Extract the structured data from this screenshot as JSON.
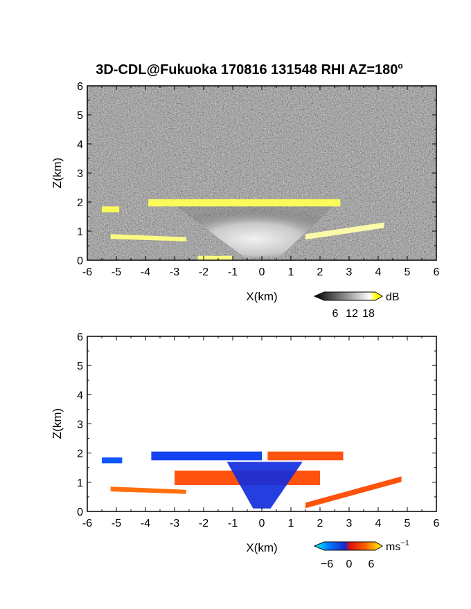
{
  "title": "3D-CDL@Fukuoka 170816 131548 RHI AZ=180",
  "title_degree": "o",
  "chart_data": [
    {
      "type": "heatmap",
      "panel": "signal-intensity",
      "xlabel": "X(km)",
      "ylabel": "Z(km)",
      "xlim": [
        -6,
        6
      ],
      "ylim": [
        0,
        6
      ],
      "xticks": [
        "-6",
        "-5",
        "-4",
        "-3",
        "-2",
        "-1",
        "0",
        "1",
        "2",
        "3",
        "4",
        "5",
        "6"
      ],
      "yticks": [
        "0",
        "1",
        "2",
        "3",
        "4",
        "5",
        "6"
      ],
      "colorbar": {
        "unit": "dB",
        "ticks": [
          "6",
          "12",
          "18"
        ],
        "range": [
          0,
          24
        ],
        "colors": [
          "#000000",
          "#ffffff",
          "#ffff00"
        ]
      },
      "features": [
        {
          "label": "yellow rim top",
          "x": [
            -3.9,
            2.7
          ],
          "z": [
            1.85,
            2.1
          ],
          "value": 20
        },
        {
          "label": "bright cone body",
          "x": [
            -3.0,
            2.5
          ],
          "z": [
            0.2,
            1.9
          ],
          "value": 12
        },
        {
          "label": "left layer upper",
          "x": [
            -5.5,
            -4.9
          ],
          "z": [
            1.65,
            1.85
          ],
          "value": 20
        },
        {
          "label": "left layer lower",
          "x": [
            -5.2,
            -2.6
          ],
          "z": [
            0.65,
            0.9
          ],
          "value": 18
        },
        {
          "label": "right layer",
          "x": [
            1.5,
            4.2
          ],
          "z": [
            0.9,
            1.3
          ],
          "value": 16
        },
        {
          "label": "ground clutter",
          "x": [
            -2.2,
            -1.0
          ],
          "z": [
            0,
            0.15
          ],
          "value": 18
        }
      ]
    },
    {
      "type": "heatmap",
      "panel": "doppler-velocity",
      "xlabel": "X(km)",
      "ylabel": "Z(km)",
      "xlim": [
        -6,
        6
      ],
      "ylim": [
        0,
        6
      ],
      "xticks": [
        "-6",
        "-5",
        "-4",
        "-3",
        "-2",
        "-1",
        "0",
        "1",
        "2",
        "3",
        "4",
        "5",
        "6"
      ],
      "yticks": [
        "0",
        "1",
        "2",
        "3",
        "4",
        "5",
        "6"
      ],
      "colorbar": {
        "unit": "ms",
        "unit_exponent": "−1",
        "ticks": [
          "−6",
          "0",
          "6"
        ],
        "range": [
          -8,
          8
        ],
        "colors": [
          "#00ffff",
          "#0040ff",
          "#2020c0",
          "#ff2000",
          "#ff8000",
          "#ffff00"
        ]
      },
      "features": [
        {
          "label": "upper layer left",
          "x": [
            -3.8,
            0.0
          ],
          "z": [
            1.75,
            2.05
          ],
          "value": -4
        },
        {
          "label": "upper layer right",
          "x": [
            0.2,
            2.8
          ],
          "z": [
            1.75,
            2.05
          ],
          "value": 3
        },
        {
          "label": "left layer upper",
          "x": [
            -5.5,
            -4.8
          ],
          "z": [
            1.65,
            1.85
          ],
          "value": -5
        },
        {
          "label": "left layer lower",
          "x": [
            -5.2,
            -2.6
          ],
          "z": [
            0.6,
            0.85
          ],
          "value": 4
        },
        {
          "label": "central red band",
          "x": [
            -3.0,
            2.0
          ],
          "z": [
            0.9,
            1.4
          ],
          "value": 3
        },
        {
          "label": "central blue core",
          "x": [
            -1.0,
            1.2
          ],
          "z": [
            0.1,
            1.7
          ],
          "value": -3
        },
        {
          "label": "right layer",
          "x": [
            1.5,
            4.8
          ],
          "z": [
            0.3,
            1.2
          ],
          "value": 3
        }
      ]
    }
  ]
}
